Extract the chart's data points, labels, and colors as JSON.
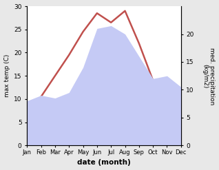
{
  "months": [
    "Jan",
    "Feb",
    "Mar",
    "Apr",
    "May",
    "Jun",
    "Jul",
    "Aug",
    "Sep",
    "Oct",
    "Nov",
    "Dec"
  ],
  "temperature": [
    5.5,
    10.5,
    15.0,
    19.5,
    24.5,
    28.5,
    26.5,
    29.0,
    22.0,
    14.0,
    9.0,
    7.5
  ],
  "precipitation": [
    8.0,
    9.0,
    8.5,
    9.5,
    14.0,
    21.0,
    21.5,
    20.0,
    16.0,
    12.0,
    12.5,
    10.5
  ],
  "temp_color": "#c0504d",
  "precip_fill_color": "#c5caf5",
  "temp_ylim": [
    0,
    30
  ],
  "precip_ylim": [
    0,
    25
  ],
  "precip_yticks": [
    0,
    5,
    10,
    15,
    20
  ],
  "temp_yticks": [
    0,
    5,
    10,
    15,
    20,
    25,
    30
  ],
  "xlabel": "date (month)",
  "ylabel_left": "max temp (C)",
  "ylabel_right": "med. precipitation\n(kg/m2)",
  "figsize": [
    3.18,
    2.47
  ],
  "dpi": 100,
  "bg_color": "#e8e8e8",
  "plot_bg_color": "#ffffff"
}
